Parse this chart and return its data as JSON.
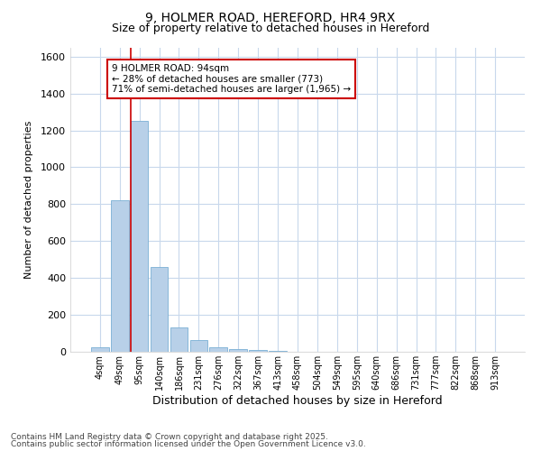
{
  "title1": "9, HOLMER ROAD, HEREFORD, HR4 9RX",
  "title2": "Size of property relative to detached houses in Hereford",
  "xlabel": "Distribution of detached houses by size in Hereford",
  "ylabel": "Number of detached properties",
  "categories": [
    "4sqm",
    "49sqm",
    "95sqm",
    "140sqm",
    "186sqm",
    "231sqm",
    "276sqm",
    "322sqm",
    "367sqm",
    "413sqm",
    "458sqm",
    "504sqm",
    "549sqm",
    "595sqm",
    "640sqm",
    "686sqm",
    "731sqm",
    "777sqm",
    "822sqm",
    "868sqm",
    "913sqm"
  ],
  "values": [
    25,
    820,
    1250,
    460,
    130,
    65,
    25,
    15,
    10,
    5,
    0,
    0,
    0,
    0,
    0,
    0,
    0,
    0,
    0,
    0,
    0
  ],
  "bar_color": "#b8d0e8",
  "bar_edge_color": "#7aafd4",
  "red_line_index": 2,
  "annotation_text": "9 HOLMER ROAD: 94sqm\n← 28% of detached houses are smaller (773)\n71% of semi-detached houses are larger (1,965) →",
  "annotation_box_color": "#ffffff",
  "annotation_border_color": "#cc0000",
  "ylim": [
    0,
    1650
  ],
  "yticks": [
    0,
    200,
    400,
    600,
    800,
    1000,
    1200,
    1400,
    1600
  ],
  "background_color": "#ffffff",
  "grid_color": "#c8d8ec",
  "footer_line1": "Contains HM Land Registry data © Crown copyright and database right 2025.",
  "footer_line2": "Contains public sector information licensed under the Open Government Licence v3.0."
}
